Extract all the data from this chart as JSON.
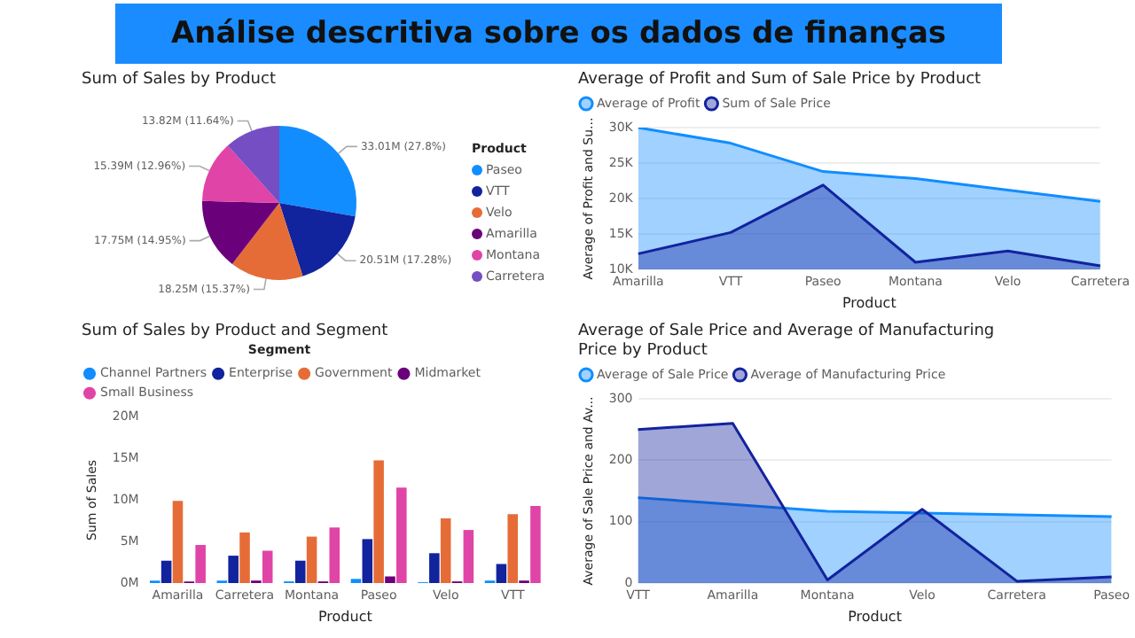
{
  "chart_data": [
    {
      "type": "other",
      "title": "Análise descritiva sobre os dados de finanças"
    },
    {
      "type": "pie",
      "title": "Sum of Sales by Product",
      "legend_title": "Product",
      "legend": "right",
      "categories": [
        "Paseo",
        "VTT",
        "Velo",
        "Amarilla",
        "Montana",
        "Carretera"
      ],
      "values": [
        33010000,
        20510000,
        18250000,
        17750000,
        15390000,
        13820000
      ],
      "value_labels": [
        "33.01M (27.8%)",
        "20.51M (17.28%)",
        "18.25M (15.37%)",
        "17.75M (14.95%)",
        "15.39M (12.96%)",
        "13.82M (11.64%)"
      ],
      "colors": [
        "#118dff",
        "#12239e",
        "#e66c37",
        "#6b007b",
        "#e044a7",
        "#744ec2"
      ]
    },
    {
      "type": "area",
      "title": "Average of Profit and Sum of Sale Price by Product",
      "xlabel": "Product",
      "ylabel": "Average of Profit and Su...",
      "legend": "top left",
      "grid": "y",
      "categories": [
        "Amarilla",
        "VTT",
        "Paseo",
        "Montana",
        "Velo",
        "Carretera"
      ],
      "ylim": [
        10000,
        30000
      ],
      "yticks": [
        {
          "value": 10000,
          "label": "10K"
        },
        {
          "value": 15000,
          "label": "15K"
        },
        {
          "value": 20000,
          "label": "20K"
        },
        {
          "value": 25000,
          "label": "25K"
        },
        {
          "value": 30000,
          "label": "30K"
        }
      ],
      "series": [
        {
          "name": "Average of Profit",
          "color": "#118dff",
          "values": [
            30000,
            27800,
            23800,
            22800,
            21200,
            19600
          ]
        },
        {
          "name": "Sum of Sale Price",
          "color": "#12239e",
          "values": [
            12200,
            15200,
            21900,
            11000,
            12600,
            10500
          ]
        }
      ]
    },
    {
      "type": "bar",
      "title": "Sum of Sales by Product and Segment",
      "xlabel": "Product",
      "ylabel": "Sum of Sales",
      "legend_title": "Segment",
      "legend": "top left",
      "categories": [
        "Amarilla",
        "Carretera",
        "Montana",
        "Paseo",
        "Velo",
        "VTT"
      ],
      "ylim": [
        0,
        20000000
      ],
      "yticks": [
        {
          "value": 0,
          "label": "0M"
        },
        {
          "value": 5000000,
          "label": "5M"
        },
        {
          "value": 10000000,
          "label": "10M"
        },
        {
          "value": 15000000,
          "label": "15M"
        },
        {
          "value": 20000000,
          "label": "20M"
        }
      ],
      "series": [
        {
          "name": "Channel Partners",
          "color": "#118dff",
          "values": [
            300000,
            300000,
            200000,
            500000,
            100000,
            300000
          ]
        },
        {
          "name": "Enterprise",
          "color": "#12239e",
          "values": [
            2700000,
            3300000,
            2700000,
            5300000,
            3600000,
            2300000
          ]
        },
        {
          "name": "Government",
          "color": "#e66c37",
          "values": [
            9900000,
            6100000,
            5600000,
            14800000,
            7800000,
            8300000
          ]
        },
        {
          "name": "Midmarket",
          "color": "#6b007b",
          "values": [
            200000,
            300000,
            200000,
            800000,
            200000,
            300000
          ]
        },
        {
          "name": "Small Business",
          "color": "#e044a7",
          "values": [
            4600000,
            3900000,
            6700000,
            11500000,
            6400000,
            9300000
          ]
        }
      ]
    },
    {
      "type": "area",
      "title": "Average of Sale Price and Average of Manufacturing Price by Product",
      "xlabel": "Product",
      "ylabel": "Average of Sale Price and Av...",
      "legend": "top left",
      "grid": "y",
      "categories": [
        "VTT",
        "Amarilla",
        "Montana",
        "Velo",
        "Carretera",
        "Paseo"
      ],
      "ylim": [
        0,
        300
      ],
      "yticks": [
        0,
        100,
        200,
        300
      ],
      "series": [
        {
          "name": "Average of Sale Price",
          "color": "#118dff",
          "values": [
            139,
            128,
            117,
            114,
            111,
            108
          ]
        },
        {
          "name": "Average of Manufacturing Price",
          "color": "#12239e",
          "values": [
            250,
            260,
            5,
            120,
            3,
            10
          ]
        }
      ]
    }
  ]
}
